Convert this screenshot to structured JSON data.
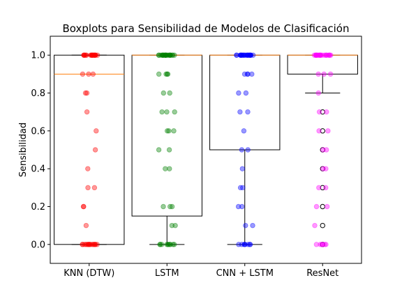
{
  "chart_data": {
    "type": "boxplot",
    "title": "Boxplots para Sensibilidad de Modelos de Clasificación",
    "xlabel": "",
    "ylabel": "Sensibilidad",
    "ylim": [
      -0.1,
      1.1
    ],
    "yticks": [
      "0.0",
      "0.2",
      "0.4",
      "0.6",
      "0.8",
      "1.0"
    ],
    "ytick_values": [
      0.0,
      0.2,
      0.4,
      0.6,
      0.8,
      1.0
    ],
    "grid": false,
    "colors": {
      "median": "#ff7f0e",
      "box": "#000000"
    },
    "categories": [
      "KNN (DTW)",
      "LSTM",
      "CNN + LSTM",
      "ResNet"
    ],
    "series": [
      {
        "category": "KNN (DTW)",
        "point_color": "#ff0000",
        "box": {
          "whislo": 0.0,
          "q1": 0.0,
          "med": 0.9,
          "q3": 1.0,
          "whishi": 1.0
        },
        "outliers": [],
        "points": [
          1.0,
          1.0,
          1.0,
          1.0,
          1.0,
          1.0,
          1.0,
          1.0,
          1.0,
          1.0,
          1.0,
          1.0,
          1.0,
          1.0,
          1.0,
          1.0,
          1.0,
          1.0,
          1.0,
          1.0,
          0.9,
          0.9,
          0.9,
          0.8,
          0.8,
          0.7,
          0.6,
          0.5,
          0.4,
          0.3,
          0.3,
          0.2,
          0.2,
          0.1,
          0.0,
          0.0,
          0.0,
          0.0,
          0.0,
          0.0,
          0.0,
          0.0,
          0.0,
          0.0,
          0.0,
          0.0,
          0.0,
          0.0,
          0.0,
          0.0
        ]
      },
      {
        "category": "LSTM",
        "point_color": "#008000",
        "box": {
          "whislo": 0.0,
          "q1": 0.15,
          "med": 1.0,
          "q3": 1.0,
          "whishi": 1.0
        },
        "outliers": [],
        "points": [
          1.0,
          1.0,
          1.0,
          1.0,
          1.0,
          1.0,
          1.0,
          1.0,
          1.0,
          1.0,
          1.0,
          1.0,
          1.0,
          1.0,
          1.0,
          1.0,
          1.0,
          1.0,
          1.0,
          1.0,
          1.0,
          1.0,
          1.0,
          1.0,
          0.9,
          0.9,
          0.9,
          0.9,
          0.8,
          0.8,
          0.7,
          0.7,
          0.7,
          0.6,
          0.6,
          0.6,
          0.5,
          0.5,
          0.4,
          0.4,
          0.2,
          0.2,
          0.2,
          0.1,
          0.1,
          0.0,
          0.0,
          0.0,
          0.0,
          0.0,
          0.0,
          0.0,
          0.0,
          0.0,
          0.0
        ]
      },
      {
        "category": "CNN + LSTM",
        "point_color": "#0000ff",
        "box": {
          "whislo": 0.0,
          "q1": 0.5,
          "med": 1.0,
          "q3": 1.0,
          "whishi": 1.0
        },
        "outliers": [],
        "points": [
          1.0,
          1.0,
          1.0,
          1.0,
          1.0,
          1.0,
          1.0,
          1.0,
          1.0,
          1.0,
          1.0,
          1.0,
          1.0,
          1.0,
          1.0,
          1.0,
          1.0,
          1.0,
          1.0,
          1.0,
          1.0,
          1.0,
          1.0,
          1.0,
          0.9,
          0.9,
          0.9,
          0.9,
          0.8,
          0.8,
          0.7,
          0.7,
          0.6,
          0.5,
          0.5,
          0.4,
          0.3,
          0.3,
          0.2,
          0.2,
          0.1,
          0.1,
          0.0,
          0.0,
          0.0,
          0.0,
          0.0,
          0.0,
          0.0,
          0.0
        ]
      },
      {
        "category": "ResNet",
        "point_color": "#ff00ff",
        "box": {
          "whislo": 0.8,
          "q1": 0.9,
          "med": 1.0,
          "q3": 1.0,
          "whishi": 1.0
        },
        "outliers": [
          0.7,
          0.6,
          0.5,
          0.4,
          0.3,
          0.2,
          0.1,
          0.0
        ],
        "points": [
          1.0,
          1.0,
          1.0,
          1.0,
          1.0,
          1.0,
          1.0,
          1.0,
          1.0,
          1.0,
          1.0,
          1.0,
          1.0,
          1.0,
          1.0,
          1.0,
          1.0,
          1.0,
          1.0,
          1.0,
          1.0,
          1.0,
          0.9,
          0.9,
          0.9,
          0.8,
          0.7,
          0.7,
          0.6,
          0.6,
          0.5,
          0.5,
          0.4,
          0.4,
          0.3,
          0.3,
          0.2,
          0.2,
          0.1,
          0.0,
          0.0,
          0.0,
          0.0,
          0.0,
          0.0
        ]
      }
    ]
  }
}
